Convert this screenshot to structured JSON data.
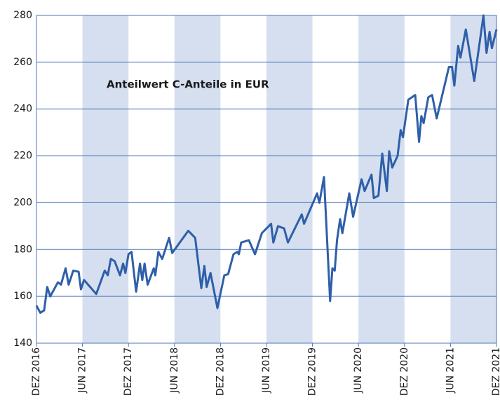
{
  "chart_data": {
    "type": "line",
    "title": "Anteilwert C-Anteile in EUR",
    "xlim": [
      0,
      60
    ],
    "ylim": [
      140,
      280
    ],
    "yticks": [
      140,
      160,
      180,
      200,
      220,
      240,
      260,
      280
    ],
    "xticks": [
      {
        "value": 0,
        "label": "DEZ 2016"
      },
      {
        "value": 6,
        "label": "JUN 2017"
      },
      {
        "value": 12,
        "label": "DEZ 2017"
      },
      {
        "value": 18,
        "label": "JUN 2018"
      },
      {
        "value": 24,
        "label": "DEZ 2018"
      },
      {
        "value": 30,
        "label": "JUN 2019"
      },
      {
        "value": 36,
        "label": "DEZ 2019"
      },
      {
        "value": 42,
        "label": "JUN 2020"
      },
      {
        "value": 48,
        "label": "DEZ 2020"
      },
      {
        "value": 54,
        "label": "JUN 2021"
      },
      {
        "value": 60,
        "label": "DEZ 2021"
      }
    ],
    "grid": true,
    "series": [
      {
        "color": "#2e5fa8",
        "x": [
          0,
          0.5,
          1.0,
          1.4,
          1.8,
          2.8,
          3.2,
          3.8,
          4.2,
          4.8,
          5.5,
          5.8,
          6.2,
          7.8,
          8.9,
          9.3,
          9.7,
          10.2,
          10.9,
          11.3,
          11.6,
          12.0,
          12.4,
          13.0,
          13.5,
          13.8,
          14.1,
          14.5,
          15.3,
          15.5,
          15.9,
          16.4,
          17.3,
          17.7,
          19.8,
          20.7,
          21.5,
          21.9,
          22.2,
          22.7,
          23.6,
          24.5,
          25.0,
          25.7,
          26.2,
          26.4,
          26.7,
          27.7,
          28.5,
          29.4,
          30.6,
          30.9,
          31.5,
          32.3,
          32.8,
          34.6,
          34.9,
          36.6,
          36.9,
          37.5,
          38.3,
          38.6,
          38.9,
          39.2,
          39.6,
          39.9,
          40.8,
          41.3,
          42.4,
          42.8,
          43.7,
          44.0,
          44.6,
          45.1,
          45.7,
          46.0,
          46.4,
          47.1,
          47.5,
          47.8,
          48.5,
          49.4,
          49.9,
          50.2,
          50.5,
          51.1,
          51.6,
          52.2,
          53.8,
          54.2,
          54.5,
          55.0,
          55.3,
          56.0,
          57.1,
          58.3,
          58.7,
          59.1,
          59.4,
          60
        ],
        "values": [
          156,
          153,
          154,
          164,
          160,
          166,
          165,
          172,
          165,
          171,
          170.5,
          163,
          167,
          161,
          171,
          169,
          176,
          175,
          169,
          174,
          170,
          178,
          179,
          162,
          174,
          167,
          174,
          165,
          172,
          169,
          179,
          176,
          185,
          178.5,
          188,
          185,
          163.5,
          173,
          164,
          170,
          155,
          169,
          169.5,
          178,
          179,
          178,
          183,
          184,
          178,
          187,
          191,
          183,
          190,
          189,
          183,
          195,
          191,
          204,
          200,
          211,
          158,
          172,
          171,
          184,
          193,
          187,
          204,
          194,
          210,
          205,
          212,
          202,
          203,
          221,
          205,
          222,
          215,
          220,
          231,
          228,
          244,
          246,
          226,
          237,
          234,
          245,
          246,
          236,
          258,
          258,
          250,
          267,
          262,
          274,
          252,
          280,
          264,
          273,
          266,
          274
        ]
      }
    ]
  }
}
